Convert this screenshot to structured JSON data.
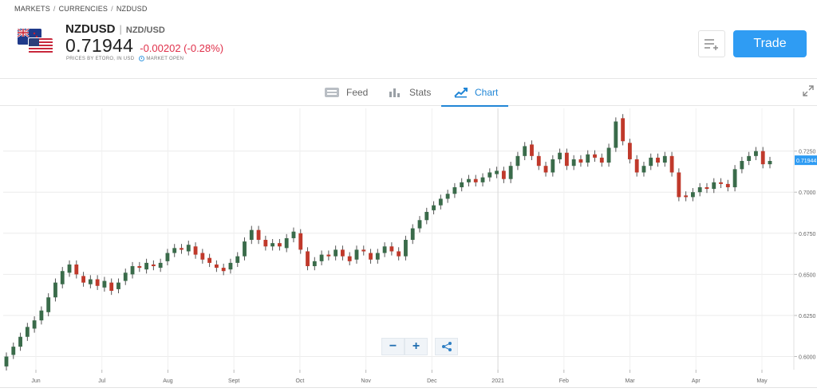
{
  "breadcrumb": [
    "MARKETS",
    "CURRENCIES",
    "NZDUSD"
  ],
  "instrument": {
    "symbol": "NZDUSD",
    "full_name": "NZD/USD",
    "price": "0.71944",
    "change": "-0.00202 (-0.28%)",
    "prices_note": "PRICES BY ETORO, IN USD",
    "market_status": "MARKET OPEN"
  },
  "actions": {
    "trade_label": "Trade"
  },
  "tabs": [
    {
      "label": "Feed",
      "icon": "feed-icon"
    },
    {
      "label": "Stats",
      "icon": "stats-icon"
    },
    {
      "label": "Chart",
      "icon": "chart-icon",
      "active": true
    }
  ],
  "colors": {
    "accent": "#2f9cf3",
    "negative": "#e0304a",
    "candle_up": "#3a6b4a",
    "candle_down": "#c0392b"
  },
  "chart_data": {
    "type": "candlestick",
    "x_labels": [
      "Jun",
      "Jul",
      "Aug",
      "Sept",
      "Oct",
      "Nov",
      "Dec",
      "2021",
      "Feb",
      "Mar",
      "Apr",
      "May"
    ],
    "y_ticks": [
      "0.7250",
      "0.7000",
      "0.6750",
      "0.6500",
      "0.6250",
      "0.6000"
    ],
    "ylim": [
      0.592,
      0.751
    ],
    "current_label": "0.71944",
    "current_value": 0.71944,
    "points": [
      [
        0.594,
        0.6
      ],
      [
        0.601,
        0.606
      ],
      [
        0.606,
        0.612
      ],
      [
        0.612,
        0.618
      ],
      [
        0.617,
        0.622
      ],
      [
        0.622,
        0.628
      ],
      [
        0.627,
        0.636
      ],
      [
        0.636,
        0.645
      ],
      [
        0.644,
        0.652
      ],
      [
        0.651,
        0.656
      ],
      [
        0.656,
        0.65
      ],
      [
        0.649,
        0.645
      ],
      [
        0.644,
        0.647
      ],
      [
        0.647,
        0.643
      ],
      [
        0.642,
        0.646
      ],
      [
        0.645,
        0.64
      ],
      [
        0.641,
        0.645
      ],
      [
        0.646,
        0.651
      ],
      [
        0.65,
        0.655
      ],
      [
        0.655,
        0.654
      ],
      [
        0.653,
        0.657
      ],
      [
        0.656,
        0.655
      ],
      [
        0.654,
        0.657
      ],
      [
        0.658,
        0.663
      ],
      [
        0.663,
        0.666
      ],
      [
        0.666,
        0.665
      ],
      [
        0.664,
        0.668
      ],
      [
        0.667,
        0.662
      ],
      [
        0.663,
        0.659
      ],
      [
        0.66,
        0.657
      ],
      [
        0.656,
        0.654
      ],
      [
        0.654,
        0.652
      ],
      [
        0.653,
        0.657
      ],
      [
        0.657,
        0.661
      ],
      [
        0.661,
        0.67
      ],
      [
        0.671,
        0.677
      ],
      [
        0.677,
        0.671
      ],
      [
        0.671,
        0.667
      ],
      [
        0.667,
        0.669
      ],
      [
        0.669,
        0.667
      ],
      [
        0.666,
        0.672
      ],
      [
        0.672,
        0.676
      ],
      [
        0.675,
        0.665
      ],
      [
        0.664,
        0.655
      ],
      [
        0.655,
        0.658
      ],
      [
        0.658,
        0.662
      ],
      [
        0.662,
        0.661
      ],
      [
        0.661,
        0.665
      ],
      [
        0.665,
        0.661
      ],
      [
        0.661,
        0.658
      ],
      [
        0.659,
        0.665
      ],
      [
        0.665,
        0.664
      ],
      [
        0.663,
        0.659
      ],
      [
        0.659,
        0.663
      ],
      [
        0.663,
        0.667
      ],
      [
        0.667,
        0.664
      ],
      [
        0.664,
        0.661
      ],
      [
        0.661,
        0.671
      ],
      [
        0.671,
        0.678
      ],
      [
        0.678,
        0.683
      ],
      [
        0.683,
        0.688
      ],
      [
        0.689,
        0.692
      ],
      [
        0.692,
        0.696
      ],
      [
        0.696,
        0.699
      ],
      [
        0.699,
        0.703
      ],
      [
        0.703,
        0.706
      ],
      [
        0.706,
        0.708
      ],
      [
        0.708,
        0.706
      ],
      [
        0.706,
        0.709
      ],
      [
        0.709,
        0.712
      ],
      [
        0.711,
        0.713
      ],
      [
        0.713,
        0.708
      ],
      [
        0.708,
        0.716
      ],
      [
        0.716,
        0.722
      ],
      [
        0.722,
        0.728
      ],
      [
        0.729,
        0.722
      ],
      [
        0.722,
        0.716
      ],
      [
        0.716,
        0.712
      ],
      [
        0.712,
        0.72
      ],
      [
        0.72,
        0.724
      ],
      [
        0.724,
        0.716
      ],
      [
        0.716,
        0.72
      ],
      [
        0.72,
        0.718
      ],
      [
        0.718,
        0.723
      ],
      [
        0.723,
        0.721
      ],
      [
        0.721,
        0.718
      ],
      [
        0.718,
        0.727
      ],
      [
        0.727,
        0.743
      ],
      [
        0.745,
        0.731
      ],
      [
        0.73,
        0.72
      ],
      [
        0.72,
        0.712
      ],
      [
        0.712,
        0.716
      ],
      [
        0.716,
        0.721
      ],
      [
        0.721,
        0.718
      ],
      [
        0.718,
        0.722
      ],
      [
        0.722,
        0.712
      ],
      [
        0.712,
        0.697
      ],
      [
        0.698,
        0.697
      ],
      [
        0.697,
        0.7
      ],
      [
        0.7,
        0.703
      ],
      [
        0.703,
        0.702
      ],
      [
        0.702,
        0.706
      ],
      [
        0.706,
        0.705
      ],
      [
        0.705,
        0.703
      ],
      [
        0.703,
        0.714
      ],
      [
        0.714,
        0.719
      ],
      [
        0.719,
        0.722
      ],
      [
        0.722,
        0.725
      ],
      [
        0.725,
        0.717
      ],
      [
        0.717,
        0.719
      ]
    ]
  }
}
